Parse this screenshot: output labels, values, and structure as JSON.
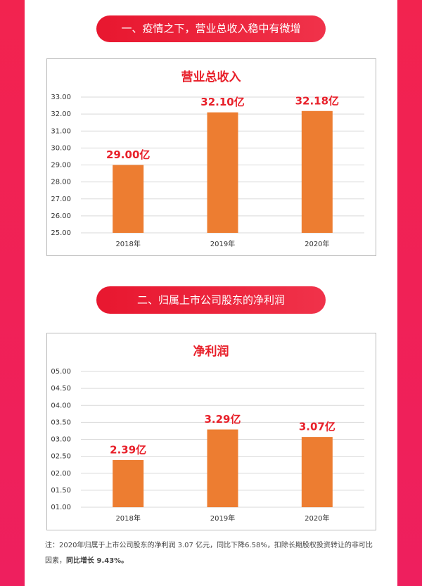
{
  "headings": [
    "一、疫情之下，营业总收入稳中有微增",
    "二、归属上市公司股东的净利润"
  ],
  "chart_data": [
    {
      "type": "bar",
      "title": "营业总收入",
      "categories": [
        "2018年",
        "2019年",
        "2020年"
      ],
      "values": [
        29.0,
        32.1,
        32.18
      ],
      "value_labels": [
        "29.00亿",
        "32.10亿",
        "32.18亿"
      ],
      "color": "#ed7d31",
      "ylim": [
        25,
        33
      ],
      "yticks": [
        {
          "value": 25,
          "label": "25.00"
        },
        {
          "value": 26,
          "label": "26.00"
        },
        {
          "value": 27,
          "label": "27.00"
        },
        {
          "value": 28,
          "label": "28.00"
        },
        {
          "value": 29,
          "label": "29.00"
        },
        {
          "value": 30,
          "label": "30.00"
        },
        {
          "value": 31,
          "label": "31.00"
        },
        {
          "value": 32,
          "label": "32.00"
        },
        {
          "value": 33,
          "label": "33.00"
        }
      ],
      "grid": true
    },
    {
      "type": "bar",
      "title": "净利润",
      "categories": [
        "2018年",
        "2019年",
        "2020年"
      ],
      "values": [
        2.39,
        3.29,
        3.07
      ],
      "value_labels": [
        "2.39亿",
        "3.29亿",
        "3.07亿"
      ],
      "color": "#ed7d31",
      "ylim": [
        1,
        5
      ],
      "yticks": [
        {
          "value": 1,
          "label": "01.00"
        },
        {
          "value": 1.5,
          "label": "01.50"
        },
        {
          "value": 2,
          "label": "02.00"
        },
        {
          "value": 2.5,
          "label": "02.50"
        },
        {
          "value": 3,
          "label": "03.00"
        },
        {
          "value": 3.5,
          "label": "03.50"
        },
        {
          "value": 4,
          "label": "04.00"
        },
        {
          "value": 4.5,
          "label": "04.50"
        },
        {
          "value": 5,
          "label": "05.00"
        }
      ],
      "grid": true
    }
  ],
  "note": {
    "text": "注：2020年归属于上市公司股东的净利润 3.07 亿元，同比下降6.58%，扣除长期股权投资转让的非可比因素，",
    "bold": "同比增长 9.43%。"
  }
}
